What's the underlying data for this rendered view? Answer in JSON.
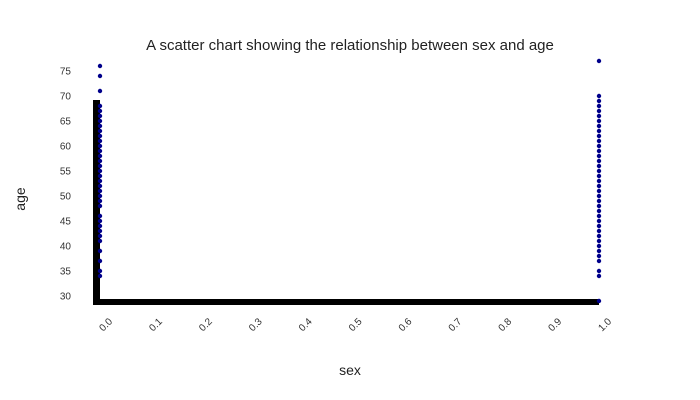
{
  "chart_data": {
    "type": "scatter",
    "title": "A scatter chart showing the relationship between sex and age",
    "xlabel": "sex",
    "ylabel": "age",
    "xlim": [
      0.0,
      1.0
    ],
    "ylim": [
      29,
      77
    ],
    "x_ticks": [
      "0.0",
      "0.1",
      "0.2",
      "0.3",
      "0.4",
      "0.5",
      "0.6",
      "0.7",
      "0.8",
      "0.9",
      "1.0"
    ],
    "y_ticks": [
      "30",
      "35",
      "40",
      "45",
      "50",
      "55",
      "60",
      "65",
      "70",
      "75"
    ],
    "grid": false,
    "legend": "none",
    "point_color": "#00008b",
    "axis_color": "#000000",
    "series": [
      {
        "points": [
          {
            "x": 0,
            "y": 34
          },
          {
            "x": 0,
            "y": 35
          },
          {
            "x": 0,
            "y": 37
          },
          {
            "x": 0,
            "y": 39
          },
          {
            "x": 0,
            "y": 41
          },
          {
            "x": 0,
            "y": 42
          },
          {
            "x": 0,
            "y": 43
          },
          {
            "x": 0,
            "y": 44
          },
          {
            "x": 0,
            "y": 45
          },
          {
            "x": 0,
            "y": 46
          },
          {
            "x": 0,
            "y": 48
          },
          {
            "x": 0,
            "y": 49
          },
          {
            "x": 0,
            "y": 50
          },
          {
            "x": 0,
            "y": 51
          },
          {
            "x": 0,
            "y": 52
          },
          {
            "x": 0,
            "y": 53
          },
          {
            "x": 0,
            "y": 54
          },
          {
            "x": 0,
            "y": 55
          },
          {
            "x": 0,
            "y": 56
          },
          {
            "x": 0,
            "y": 57
          },
          {
            "x": 0,
            "y": 58
          },
          {
            "x": 0,
            "y": 59
          },
          {
            "x": 0,
            "y": 60
          },
          {
            "x": 0,
            "y": 61
          },
          {
            "x": 0,
            "y": 62
          },
          {
            "x": 0,
            "y": 63
          },
          {
            "x": 0,
            "y": 64
          },
          {
            "x": 0,
            "y": 65
          },
          {
            "x": 0,
            "y": 66
          },
          {
            "x": 0,
            "y": 67
          },
          {
            "x": 0,
            "y": 68
          },
          {
            "x": 0,
            "y": 71
          },
          {
            "x": 0,
            "y": 74
          },
          {
            "x": 0,
            "y": 76
          },
          {
            "x": 1,
            "y": 29
          },
          {
            "x": 1,
            "y": 34
          },
          {
            "x": 1,
            "y": 35
          },
          {
            "x": 1,
            "y": 37
          },
          {
            "x": 1,
            "y": 38
          },
          {
            "x": 1,
            "y": 39
          },
          {
            "x": 1,
            "y": 40
          },
          {
            "x": 1,
            "y": 41
          },
          {
            "x": 1,
            "y": 42
          },
          {
            "x": 1,
            "y": 43
          },
          {
            "x": 1,
            "y": 44
          },
          {
            "x": 1,
            "y": 45
          },
          {
            "x": 1,
            "y": 46
          },
          {
            "x": 1,
            "y": 47
          },
          {
            "x": 1,
            "y": 48
          },
          {
            "x": 1,
            "y": 49
          },
          {
            "x": 1,
            "y": 50
          },
          {
            "x": 1,
            "y": 51
          },
          {
            "x": 1,
            "y": 52
          },
          {
            "x": 1,
            "y": 53
          },
          {
            "x": 1,
            "y": 54
          },
          {
            "x": 1,
            "y": 55
          },
          {
            "x": 1,
            "y": 56
          },
          {
            "x": 1,
            "y": 57
          },
          {
            "x": 1,
            "y": 58
          },
          {
            "x": 1,
            "y": 59
          },
          {
            "x": 1,
            "y": 60
          },
          {
            "x": 1,
            "y": 61
          },
          {
            "x": 1,
            "y": 62
          },
          {
            "x": 1,
            "y": 63
          },
          {
            "x": 1,
            "y": 64
          },
          {
            "x": 1,
            "y": 65
          },
          {
            "x": 1,
            "y": 66
          },
          {
            "x": 1,
            "y": 67
          },
          {
            "x": 1,
            "y": 68
          },
          {
            "x": 1,
            "y": 69
          },
          {
            "x": 1,
            "y": 70
          },
          {
            "x": 1,
            "y": 77
          }
        ]
      }
    ]
  }
}
